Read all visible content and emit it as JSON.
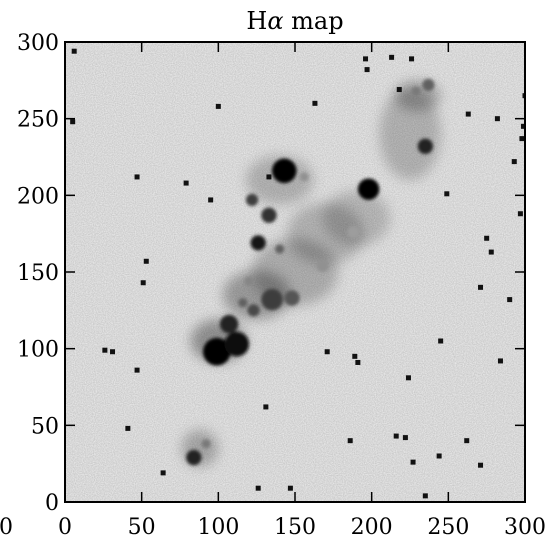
{
  "chart_data": {
    "type": "heatmap",
    "title_main": "H",
    "title_symbol": "α",
    "title_rest": " map",
    "colormap": "gray_r",
    "background_color": "#f2f2f2",
    "frame_color": "#000000",
    "xlim": [
      0,
      300
    ],
    "ylim": [
      0,
      300
    ],
    "x_ticks": [
      0,
      50,
      100,
      150,
      200,
      250,
      300
    ],
    "y_ticks": [
      0,
      50,
      100,
      150,
      200,
      250,
      300
    ],
    "x_tick_labels": [
      "0",
      "50",
      "100",
      "150",
      "200",
      "250",
      "300"
    ],
    "y_tick_labels": [
      "0",
      "50",
      "100",
      "150",
      "200",
      "250",
      "300"
    ],
    "extra_left_label": "0",
    "diffuse_emission": [
      {
        "x": 100,
        "y": 105,
        "rx": 18,
        "ry": 14,
        "intensity": 0.35
      },
      {
        "x": 125,
        "y": 135,
        "rx": 22,
        "ry": 16,
        "intensity": 0.3
      },
      {
        "x": 150,
        "y": 150,
        "rx": 28,
        "ry": 22,
        "intensity": 0.22
      },
      {
        "x": 170,
        "y": 175,
        "rx": 25,
        "ry": 20,
        "intensity": 0.2
      },
      {
        "x": 190,
        "y": 185,
        "rx": 22,
        "ry": 18,
        "intensity": 0.18
      },
      {
        "x": 140,
        "y": 210,
        "rx": 22,
        "ry": 16,
        "intensity": 0.2
      },
      {
        "x": 225,
        "y": 240,
        "rx": 20,
        "ry": 30,
        "intensity": 0.2
      },
      {
        "x": 230,
        "y": 265,
        "rx": 15,
        "ry": 10,
        "intensity": 0.25
      },
      {
        "x": 88,
        "y": 35,
        "rx": 12,
        "ry": 12,
        "intensity": 0.25
      }
    ],
    "bright_knots": [
      {
        "x": 143,
        "y": 216,
        "r": 8,
        "intensity": 1.0
      },
      {
        "x": 198,
        "y": 204,
        "r": 7,
        "intensity": 1.0
      },
      {
        "x": 99,
        "y": 98,
        "r": 9,
        "intensity": 1.0
      },
      {
        "x": 112,
        "y": 103,
        "r": 8,
        "intensity": 0.95
      },
      {
        "x": 107,
        "y": 116,
        "r": 6,
        "intensity": 0.85
      },
      {
        "x": 126,
        "y": 169,
        "r": 5,
        "intensity": 0.9
      },
      {
        "x": 122,
        "y": 197,
        "r": 4,
        "intensity": 0.75
      },
      {
        "x": 133,
        "y": 187,
        "r": 5,
        "intensity": 0.8
      },
      {
        "x": 140,
        "y": 165,
        "r": 3,
        "intensity": 0.6
      },
      {
        "x": 135,
        "y": 132,
        "r": 7,
        "intensity": 0.75
      },
      {
        "x": 148,
        "y": 133,
        "r": 5,
        "intensity": 0.65
      },
      {
        "x": 123,
        "y": 125,
        "r": 4,
        "intensity": 0.7
      },
      {
        "x": 116,
        "y": 130,
        "r": 3,
        "intensity": 0.6
      },
      {
        "x": 235,
        "y": 232,
        "r": 5,
        "intensity": 0.85
      },
      {
        "x": 237,
        "y": 272,
        "r": 4,
        "intensity": 0.6
      },
      {
        "x": 229,
        "y": 268,
        "r": 3,
        "intensity": 0.5
      },
      {
        "x": 84,
        "y": 29,
        "r": 5,
        "intensity": 0.85
      },
      {
        "x": 92,
        "y": 38,
        "r": 3,
        "intensity": 0.5
      },
      {
        "x": 168,
        "y": 154,
        "r": 4,
        "intensity": 0.4
      },
      {
        "x": 156,
        "y": 212,
        "r": 3,
        "intensity": 0.4
      },
      {
        "x": 188,
        "y": 176,
        "r": 4,
        "intensity": 0.35
      },
      {
        "x": 120,
        "y": 144,
        "r": 3,
        "intensity": 0.45
      }
    ],
    "point_sources": [
      {
        "x": 163,
        "y": 260
      },
      {
        "x": 196,
        "y": 289
      },
      {
        "x": 197,
        "y": 282
      },
      {
        "x": 213,
        "y": 290
      },
      {
        "x": 133,
        "y": 212
      },
      {
        "x": 263,
        "y": 253
      },
      {
        "x": 282,
        "y": 250
      },
      {
        "x": 298,
        "y": 237
      },
      {
        "x": 293,
        "y": 222
      },
      {
        "x": 249,
        "y": 201
      },
      {
        "x": 297,
        "y": 188
      },
      {
        "x": 275,
        "y": 172
      },
      {
        "x": 278,
        "y": 163
      },
      {
        "x": 271,
        "y": 140
      },
      {
        "x": 290,
        "y": 132
      },
      {
        "x": 53,
        "y": 157
      },
      {
        "x": 51,
        "y": 143
      },
      {
        "x": 79,
        "y": 208
      },
      {
        "x": 95,
        "y": 197
      },
      {
        "x": 47,
        "y": 212
      },
      {
        "x": 31,
        "y": 98
      },
      {
        "x": 26,
        "y": 99
      },
      {
        "x": 47,
        "y": 86
      },
      {
        "x": 189,
        "y": 95
      },
      {
        "x": 191,
        "y": 91
      },
      {
        "x": 245,
        "y": 105
      },
      {
        "x": 284,
        "y": 92
      },
      {
        "x": 224,
        "y": 81
      },
      {
        "x": 171,
        "y": 98
      },
      {
        "x": 131,
        "y": 62
      },
      {
        "x": 186,
        "y": 40
      },
      {
        "x": 216,
        "y": 43
      },
      {
        "x": 222,
        "y": 42
      },
      {
        "x": 244,
        "y": 30
      },
      {
        "x": 271,
        "y": 24
      },
      {
        "x": 262,
        "y": 40
      },
      {
        "x": 227,
        "y": 26
      },
      {
        "x": 235,
        "y": 4
      },
      {
        "x": 64,
        "y": 19
      },
      {
        "x": 126,
        "y": 9
      },
      {
        "x": 147,
        "y": 9
      },
      {
        "x": 41,
        "y": 48
      },
      {
        "x": 6,
        "y": 294
      },
      {
        "x": 5,
        "y": 248
      },
      {
        "x": 100,
        "y": 258
      },
      {
        "x": 300,
        "y": 265
      },
      {
        "x": 299,
        "y": 245
      },
      {
        "x": 218,
        "y": 269
      },
      {
        "x": 226,
        "y": 289
      }
    ]
  }
}
